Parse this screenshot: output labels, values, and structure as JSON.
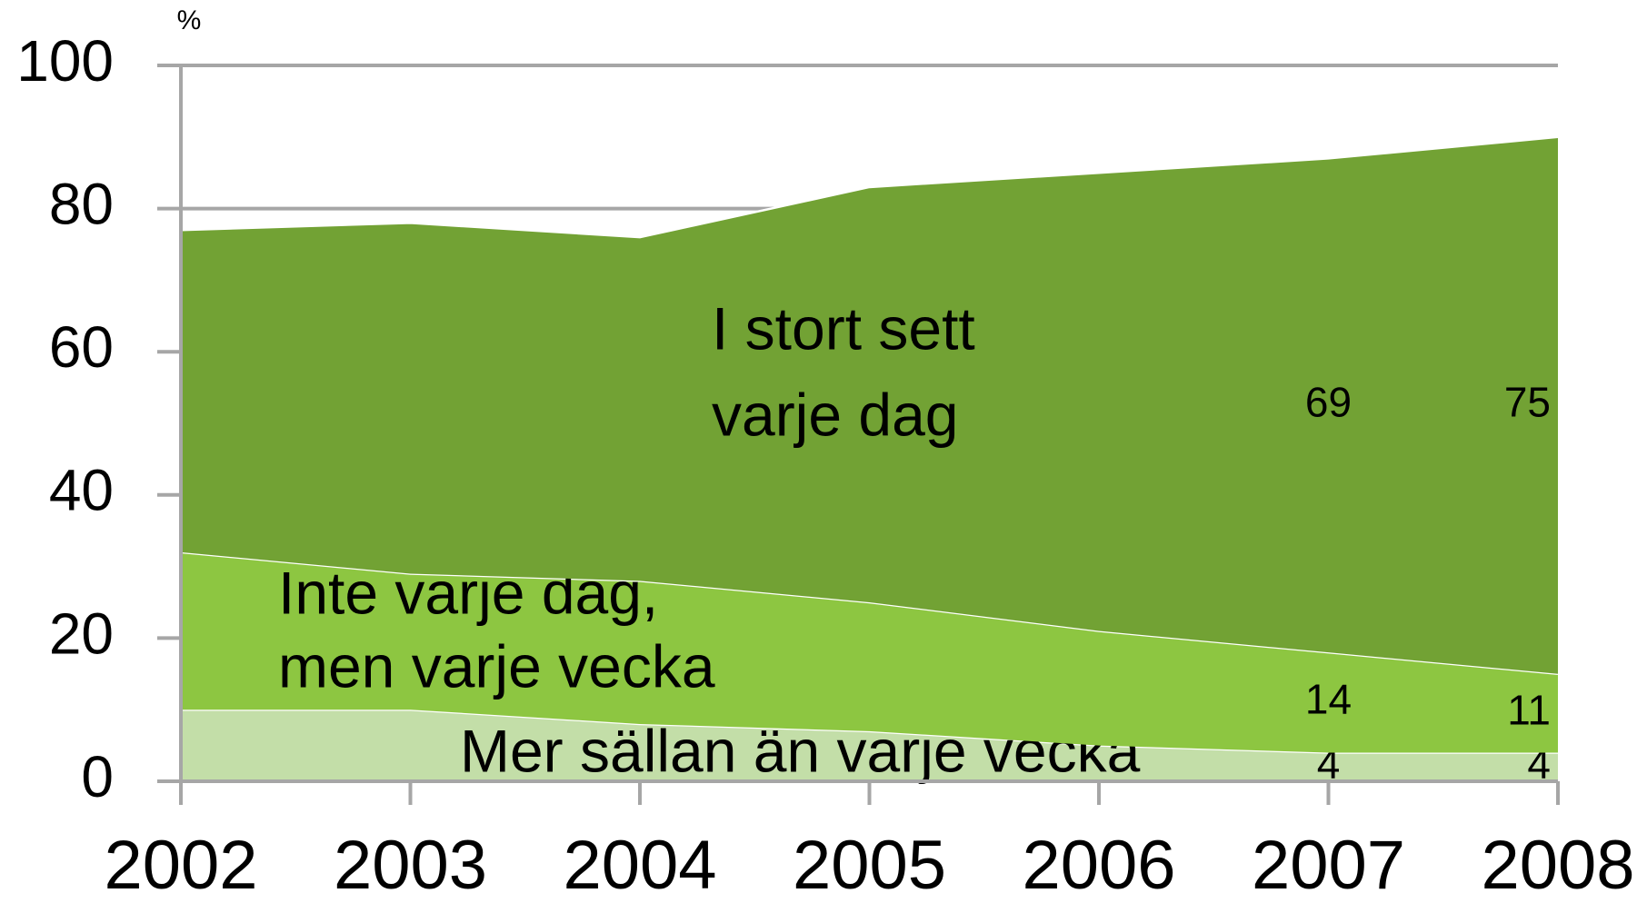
{
  "chart_data": {
    "type": "stacked_area",
    "y_label": "%",
    "categories": [
      "2002",
      "2003",
      "2004",
      "2005",
      "2006",
      "2007",
      "2008"
    ],
    "series": [
      {
        "name": [
          "Mer sällan än varje vecka"
        ],
        "color": "#c3dea8",
        "values": [
          10,
          10,
          8,
          7,
          5,
          4,
          4
        ],
        "value_labels": [
          null,
          null,
          null,
          null,
          null,
          "4",
          "4"
        ]
      },
      {
        "name": [
          "Inte varje dag,",
          "men varje vecka"
        ],
        "color": "#8dc641",
        "values": [
          22,
          19,
          20,
          18,
          16,
          14,
          11
        ],
        "value_labels": [
          null,
          null,
          null,
          null,
          null,
          "14",
          "11"
        ]
      },
      {
        "name": [
          "I stort sett",
          "varje dag"
        ],
        "color": "#72a234",
        "values": [
          45,
          49,
          48,
          58,
          64,
          69,
          75
        ],
        "value_labels": [
          null,
          null,
          null,
          null,
          null,
          "69",
          "75"
        ]
      }
    ],
    "ylim": [
      0,
      100
    ],
    "yticks": [
      0,
      20,
      40,
      60,
      80,
      100
    ],
    "grid": true
  }
}
